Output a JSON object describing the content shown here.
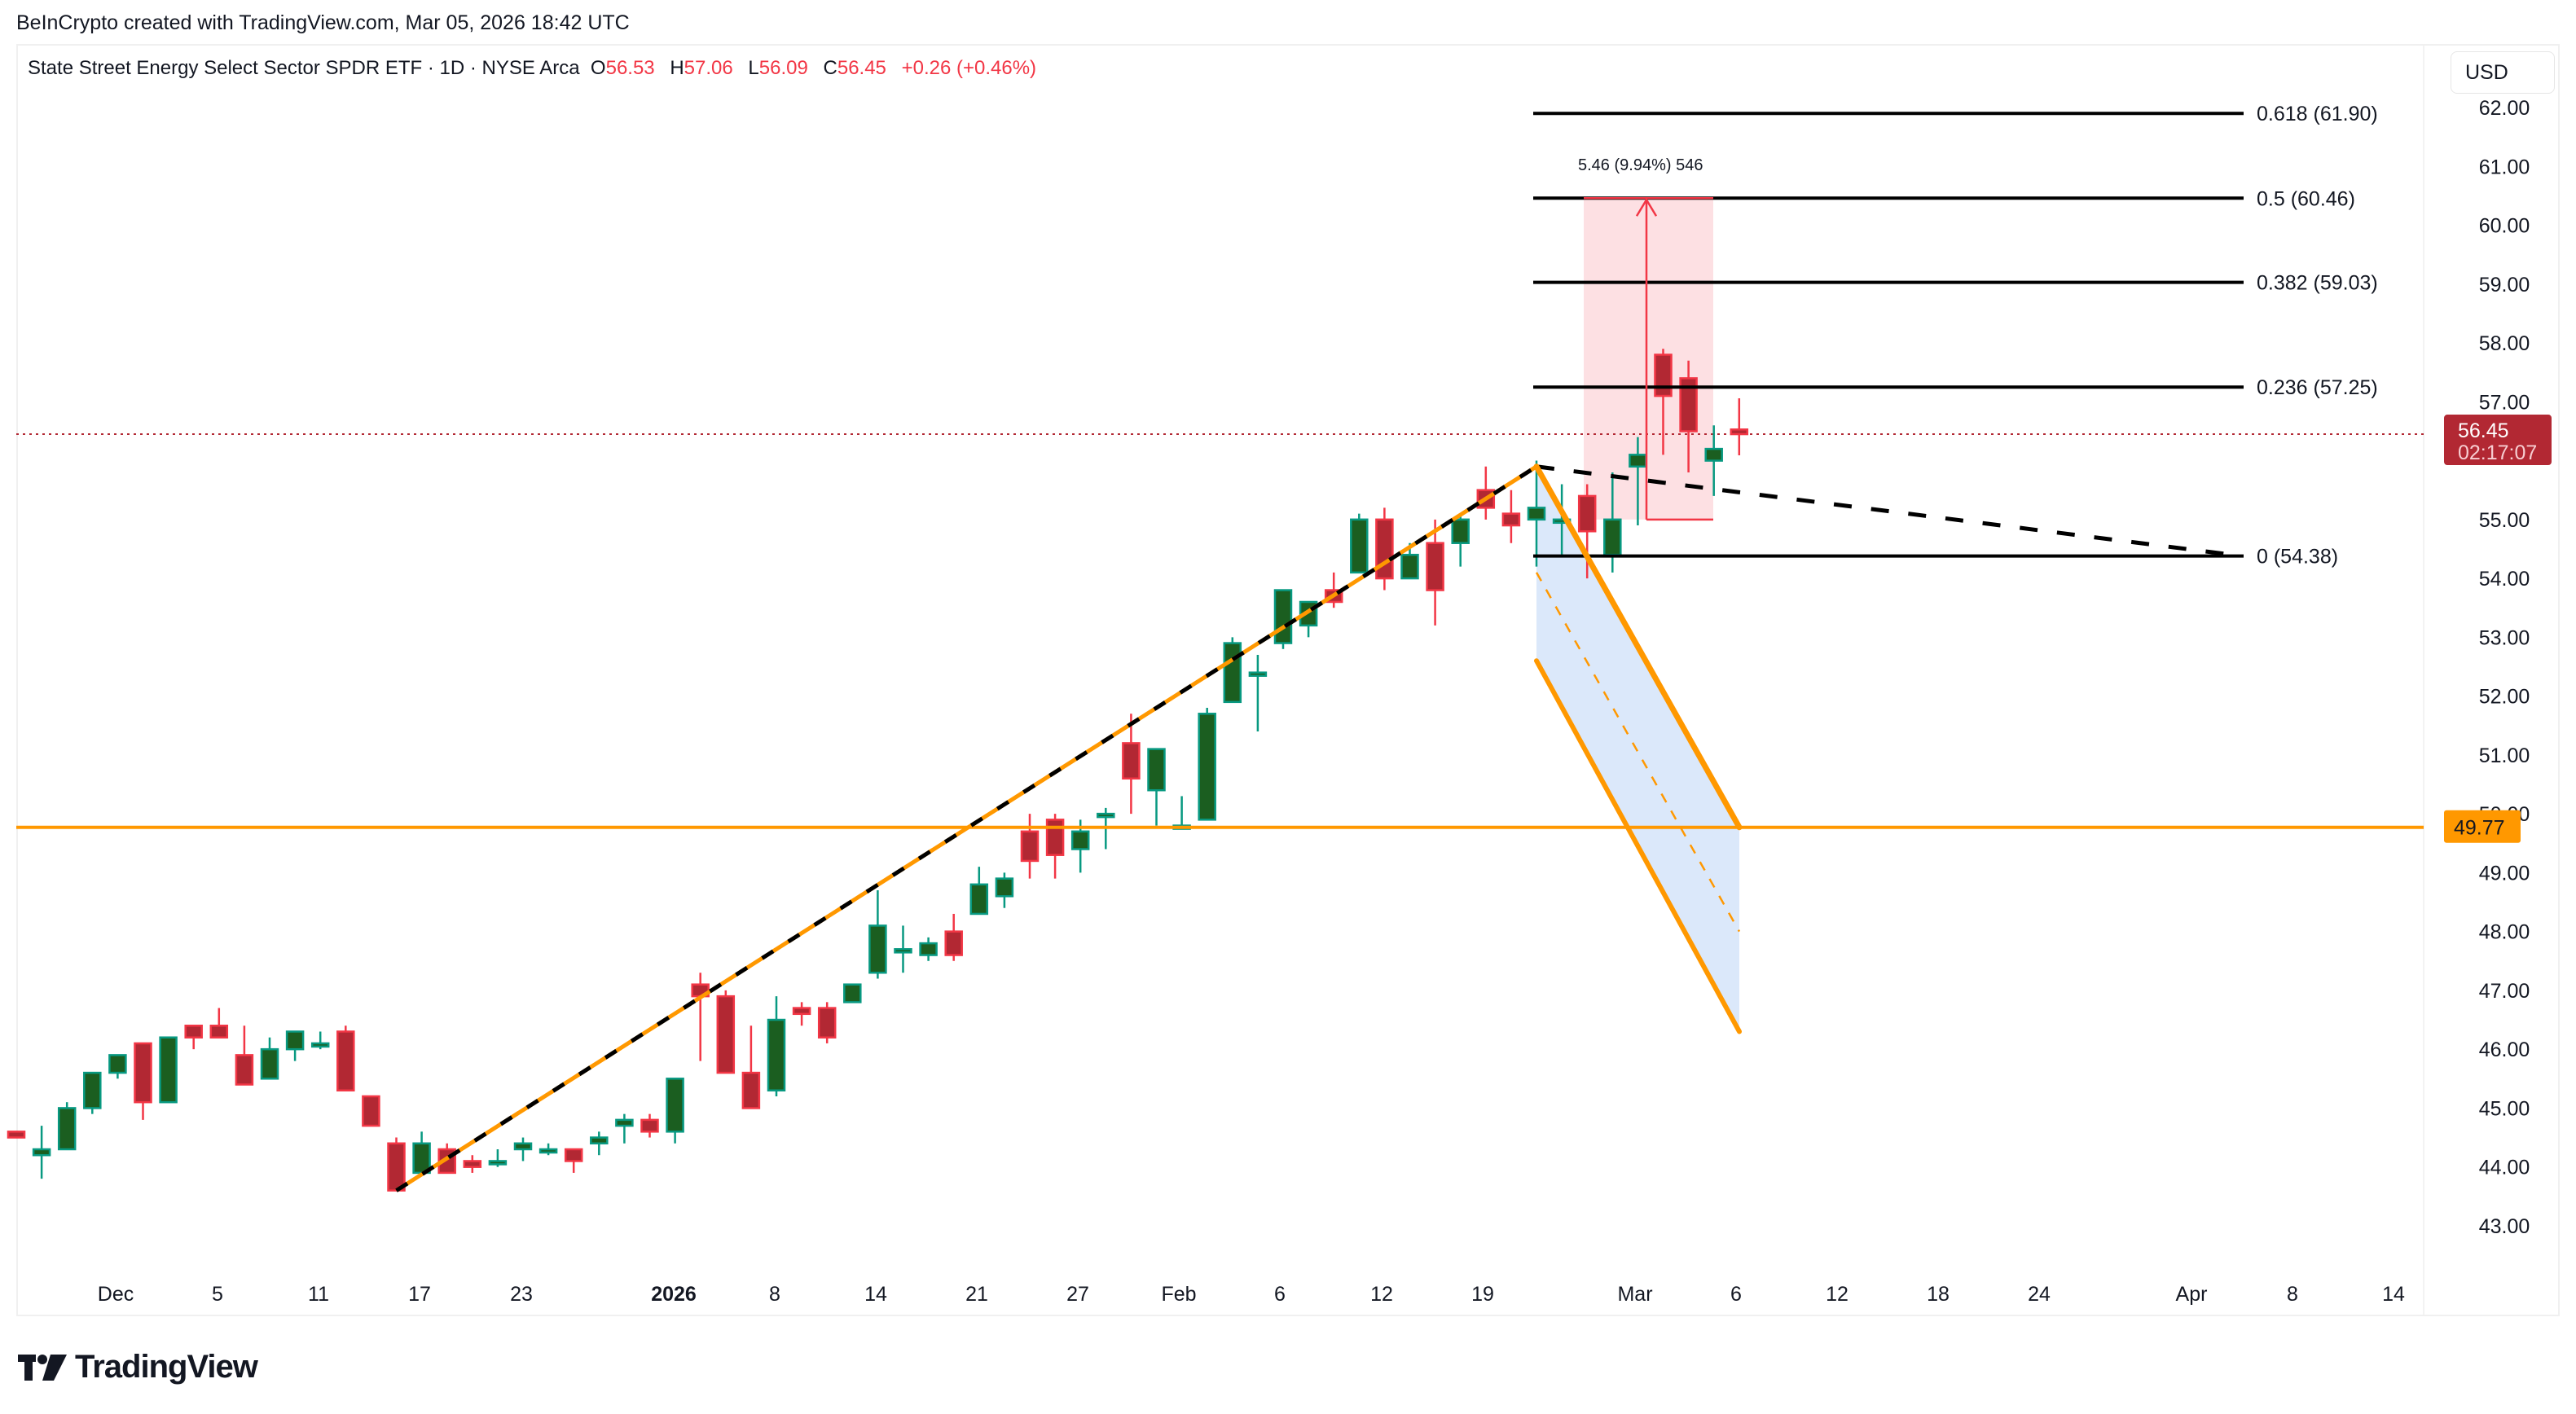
{
  "header": {
    "credit": "BeInCrypto created with TradingView.com, Mar 05, 2026 18:42 UTC",
    "symbol_title": "State Street Energy Select Sector SPDR ETF · 1D · NYSE Arca",
    "ohlc": {
      "o_label": "O",
      "o_value": "56.53",
      "h_label": "H",
      "h_value": "57.06",
      "l_label": "L",
      "l_value": "56.09",
      "c_label": "C",
      "c_value": "56.45",
      "change": "+0.26 (+0.46%)"
    }
  },
  "price_axis": {
    "currency_button": "USD",
    "ticks": [
      "62.00",
      "61.00",
      "60.00",
      "59.00",
      "58.00",
      "57.00",
      "55.00",
      "54.00",
      "53.00",
      "52.00",
      "51.00",
      "50.00",
      "49.00",
      "48.00",
      "47.00",
      "46.00",
      "45.00",
      "44.00",
      "43.00"
    ],
    "current_price_label": "56.45",
    "countdown_label": "02:17:07",
    "support_label": "49.77"
  },
  "footer": {
    "brand": "TradingView"
  },
  "colors": {
    "up_body": "#1b5e20",
    "up_border": "#089981",
    "down_body": "#b22833",
    "down_border": "#f23645",
    "orange": "#ff9800",
    "fib_line": "#000000",
    "measure_fill": "#fde0e3",
    "measure_line": "#f23645",
    "channel_fill": "#dbe8fa",
    "current_price": "#b22833"
  },
  "chart_data": {
    "type": "candlestick",
    "title": "State Street Energy Select Sector SPDR ETF · 1D · NYSE Arca",
    "xlabel": "",
    "ylabel": "USD",
    "ylim": [
      42.5,
      62.5
    ],
    "x_tick_labels": [
      "Dec",
      "5",
      "11",
      "17",
      "23",
      "2026",
      "8",
      "14",
      "21",
      "27",
      "Feb",
      "6",
      "12",
      "19",
      "Mar",
      "6",
      "12",
      "18",
      "24",
      "Apr",
      "8",
      "14"
    ],
    "last": {
      "open": 56.53,
      "high": 57.06,
      "low": 56.09,
      "close": 56.45,
      "change": 0.26,
      "change_pct": 0.46
    },
    "candles": [
      {
        "o": 44.6,
        "h": 44.6,
        "l": 44.5,
        "c": 44.5
      },
      {
        "o": 44.2,
        "h": 44.7,
        "l": 43.8,
        "c": 44.3
      },
      {
        "o": 44.3,
        "h": 45.1,
        "l": 44.3,
        "c": 45.0
      },
      {
        "o": 45.0,
        "h": 45.6,
        "l": 44.9,
        "c": 45.6
      },
      {
        "o": 45.6,
        "h": 45.9,
        "l": 45.5,
        "c": 45.9
      },
      {
        "o": 46.1,
        "h": 46.1,
        "l": 44.8,
        "c": 45.1
      },
      {
        "o": 45.1,
        "h": 46.2,
        "l": 45.1,
        "c": 46.2
      },
      {
        "o": 46.4,
        "h": 46.4,
        "l": 46.0,
        "c": 46.2
      },
      {
        "o": 46.4,
        "h": 46.7,
        "l": 46.2,
        "c": 46.2
      },
      {
        "o": 45.9,
        "h": 46.4,
        "l": 45.4,
        "c": 45.4
      },
      {
        "o": 45.5,
        "h": 46.2,
        "l": 45.5,
        "c": 46.0
      },
      {
        "o": 46.0,
        "h": 46.3,
        "l": 45.8,
        "c": 46.3
      },
      {
        "o": 46.1,
        "h": 46.3,
        "l": 46.0,
        "c": 46.1
      },
      {
        "o": 46.3,
        "h": 46.4,
        "l": 45.4,
        "c": 45.3
      },
      {
        "o": 45.2,
        "h": 45.2,
        "l": 44.7,
        "c": 44.7
      },
      {
        "o": 44.4,
        "h": 44.5,
        "l": 43.6,
        "c": 43.6
      },
      {
        "o": 43.9,
        "h": 44.6,
        "l": 43.9,
        "c": 44.4
      },
      {
        "o": 44.3,
        "h": 44.4,
        "l": 43.9,
        "c": 43.9
      },
      {
        "o": 44.1,
        "h": 44.2,
        "l": 43.9,
        "c": 44.0
      },
      {
        "o": 44.1,
        "h": 44.3,
        "l": 44.0,
        "c": 44.1
      },
      {
        "o": 44.3,
        "h": 44.5,
        "l": 44.1,
        "c": 44.4
      },
      {
        "o": 44.3,
        "h": 44.4,
        "l": 44.2,
        "c": 44.3
      },
      {
        "o": 44.3,
        "h": 44.3,
        "l": 43.9,
        "c": 44.1
      },
      {
        "o": 44.4,
        "h": 44.6,
        "l": 44.2,
        "c": 44.5
      },
      {
        "o": 44.7,
        "h": 44.9,
        "l": 44.4,
        "c": 44.8
      },
      {
        "o": 44.8,
        "h": 44.9,
        "l": 44.5,
        "c": 44.6
      },
      {
        "o": 44.6,
        "h": 45.5,
        "l": 44.4,
        "c": 45.5
      },
      {
        "o": 47.1,
        "h": 47.3,
        "l": 45.8,
        "c": 46.9
      },
      {
        "o": 46.9,
        "h": 47.0,
        "l": 45.6,
        "c": 45.6
      },
      {
        "o": 45.6,
        "h": 46.4,
        "l": 45.4,
        "c": 45.0
      },
      {
        "o": 45.3,
        "h": 46.9,
        "l": 45.2,
        "c": 46.5
      },
      {
        "o": 46.7,
        "h": 46.8,
        "l": 46.4,
        "c": 46.6
      },
      {
        "o": 46.7,
        "h": 46.8,
        "l": 46.1,
        "c": 46.2
      },
      {
        "o": 46.8,
        "h": 47.1,
        "l": 46.8,
        "c": 47.1
      },
      {
        "o": 47.3,
        "h": 48.7,
        "l": 47.2,
        "c": 48.1
      },
      {
        "o": 47.7,
        "h": 48.1,
        "l": 47.3,
        "c": 47.7
      },
      {
        "o": 47.6,
        "h": 47.9,
        "l": 47.5,
        "c": 47.8
      },
      {
        "o": 48.0,
        "h": 48.3,
        "l": 47.5,
        "c": 47.6
      },
      {
        "o": 48.3,
        "h": 49.1,
        "l": 48.3,
        "c": 48.8
      },
      {
        "o": 48.6,
        "h": 49.0,
        "l": 48.4,
        "c": 48.9
      },
      {
        "o": 49.7,
        "h": 50.0,
        "l": 48.9,
        "c": 49.2
      },
      {
        "o": 49.9,
        "h": 50.0,
        "l": 48.9,
        "c": 49.3
      },
      {
        "o": 49.4,
        "h": 49.9,
        "l": 49.0,
        "c": 49.7
      },
      {
        "o": 50.0,
        "h": 50.1,
        "l": 49.4,
        "c": 50.0
      },
      {
        "o": 51.2,
        "h": 51.7,
        "l": 50.0,
        "c": 50.6
      },
      {
        "o": 50.4,
        "h": 51.1,
        "l": 49.8,
        "c": 51.1
      },
      {
        "o": 49.8,
        "h": 50.3,
        "l": 49.8,
        "c": 49.8
      },
      {
        "o": 49.9,
        "h": 51.8,
        "l": 49.9,
        "c": 51.7
      },
      {
        "o": 51.9,
        "h": 53.0,
        "l": 51.9,
        "c": 52.9
      },
      {
        "o": 52.4,
        "h": 52.7,
        "l": 51.4,
        "c": 52.4
      },
      {
        "o": 52.9,
        "h": 53.4,
        "l": 52.8,
        "c": 53.8
      },
      {
        "o": 53.2,
        "h": 53.6,
        "l": 53.0,
        "c": 53.6
      },
      {
        "o": 53.8,
        "h": 54.1,
        "l": 53.5,
        "c": 53.6
      },
      {
        "o": 54.1,
        "h": 55.1,
        "l": 54.1,
        "c": 55.0
      },
      {
        "o": 55.0,
        "h": 55.2,
        "l": 53.8,
        "c": 54.0
      },
      {
        "o": 54.0,
        "h": 54.6,
        "l": 54.0,
        "c": 54.4
      },
      {
        "o": 54.6,
        "h": 55.0,
        "l": 53.2,
        "c": 53.8
      },
      {
        "o": 54.6,
        "h": 55.1,
        "l": 54.2,
        "c": 55.0
      },
      {
        "o": 55.5,
        "h": 55.9,
        "l": 55.0,
        "c": 55.2
      },
      {
        "o": 55.1,
        "h": 55.5,
        "l": 54.6,
        "c": 54.9
      },
      {
        "o": 55.0,
        "h": 56.0,
        "l": 54.2,
        "c": 55.2
      },
      {
        "o": 55.0,
        "h": 55.6,
        "l": 54.4,
        "c": 55.0
      },
      {
        "o": 55.4,
        "h": 55.6,
        "l": 54.0,
        "c": 54.8
      },
      {
        "o": 54.4,
        "h": 55.8,
        "l": 54.1,
        "c": 55.0
      },
      {
        "o": 55.9,
        "h": 56.4,
        "l": 54.9,
        "c": 56.1
      },
      {
        "o": 57.8,
        "h": 57.9,
        "l": 56.1,
        "c": 57.1
      },
      {
        "o": 57.4,
        "h": 57.7,
        "l": 55.8,
        "c": 56.5
      },
      {
        "o": 56.0,
        "h": 56.6,
        "l": 55.4,
        "c": 56.2
      },
      {
        "o": 56.53,
        "h": 57.06,
        "l": 56.09,
        "c": 56.45
      }
    ],
    "horizontal_levels": [
      {
        "label": "0.618 (61.90)",
        "price": 61.9
      },
      {
        "label": "0.5 (60.46)",
        "price": 60.46
      },
      {
        "label": "0.382 (59.03)",
        "price": 59.03
      },
      {
        "label": "0.236 (57.25)",
        "price": 57.25
      },
      {
        "label": "0 (54.38)",
        "price": 54.38
      }
    ],
    "support_line": {
      "price": 49.77,
      "color": "#ff9800"
    },
    "current_price_line": {
      "price": 56.45
    },
    "price_range_measure": {
      "label": "5.46 (9.94%) 546",
      "from": 55.0,
      "to": 60.46
    },
    "trendlines": [
      {
        "name": "rising trend (dashed black over orange)",
        "from_price": 43.6,
        "to_price": 55.9
      },
      {
        "name": "descending dashed projection",
        "from_price": 55.9,
        "to_price": 54.38
      }
    ],
    "channel": {
      "name": "falling orange channel projection",
      "upper_start": 55.9,
      "upper_end": 49.77,
      "lower_start": 52.6,
      "lower_end": 46.3
    }
  }
}
